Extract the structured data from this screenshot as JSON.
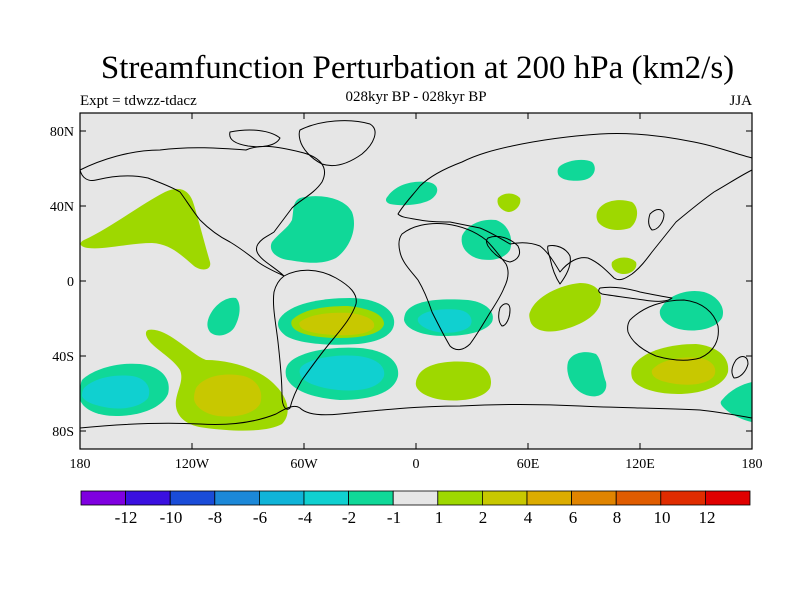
{
  "title": "Streamfunction Perturbation at 200 hPa (km2/s)",
  "subtitle": "028kyr BP - 028kyr BP",
  "left_label": "Expt = tdwzz-tdacz",
  "right_label": "JJA",
  "axes": {
    "lat_ticks": [
      "80N",
      "40N",
      "0",
      "40S",
      "80S"
    ],
    "lon_ticks": [
      "180",
      "120W",
      "60W",
      "0",
      "60E",
      "120E",
      "180"
    ]
  },
  "colorbar": {
    "colors": [
      "#7f00e0",
      "#3a10e0",
      "#1a4cd8",
      "#1c88d8",
      "#10b4d8",
      "#10d0d0",
      "#10d898",
      "#e6e6e6",
      "#9ed800",
      "#c8c800",
      "#dcac00",
      "#e08400",
      "#e05c00",
      "#e02c00",
      "#e00000"
    ],
    "labels": [
      "-12",
      "-10",
      "-8",
      "-6",
      "-4",
      "-2",
      "-1",
      "1",
      "2",
      "4",
      "6",
      "8",
      "10",
      "12"
    ]
  },
  "colors": {
    "background": "#e6e6e6",
    "neg1": "#10d898",
    "neg2": "#10d0d0",
    "pos1": "#9ed800",
    "pos2": "#c8c800"
  }
}
